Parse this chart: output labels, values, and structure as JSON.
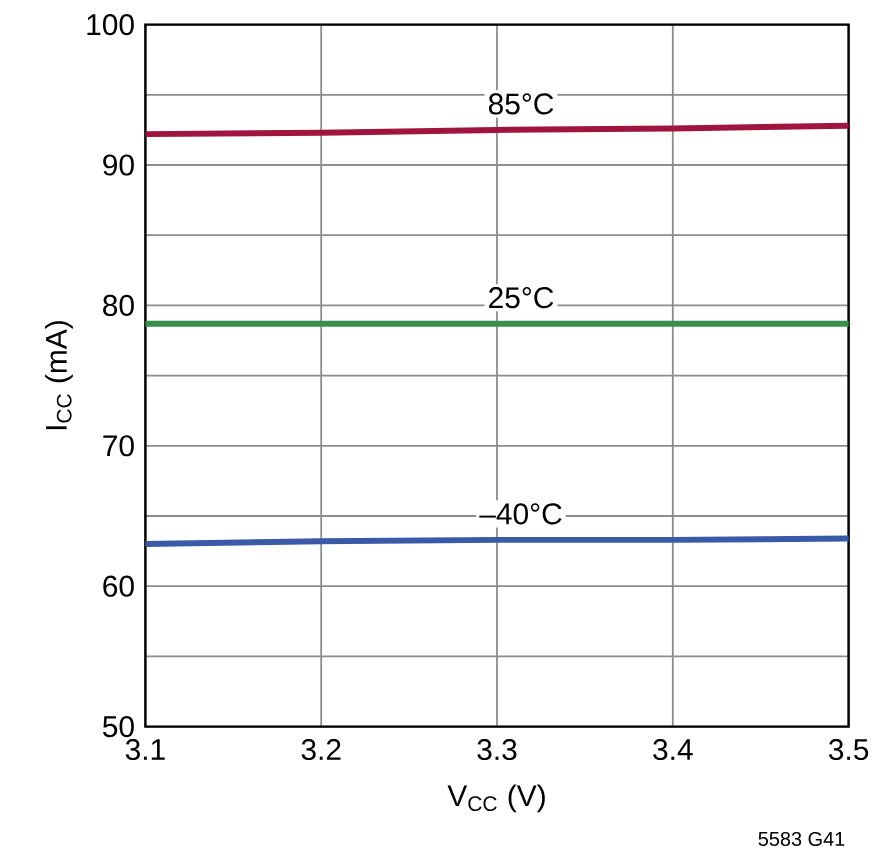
{
  "chart_data": {
    "type": "line",
    "xlabel": "V$_{CC}$ (V)",
    "ylabel": "I$_{CC}$ (mA)",
    "x": [
      3.1,
      3.2,
      3.3,
      3.4,
      3.5
    ],
    "series": [
      {
        "name": "85°C",
        "color": "#a0153e",
        "values": [
          92.2,
          92.3,
          92.5,
          92.6,
          92.8
        ]
      },
      {
        "name": "25°C",
        "color": "#3a8f4a",
        "values": [
          78.7,
          78.7,
          78.7,
          78.7,
          78.7
        ]
      },
      {
        "name": "–40°C",
        "color": "#3a5aa8",
        "values": [
          63.0,
          63.2,
          63.3,
          63.3,
          63.4
        ]
      }
    ],
    "xlim": [
      3.1,
      3.5
    ],
    "ylim": [
      50,
      100
    ],
    "xticks": [
      3.1,
      3.2,
      3.3,
      3.4,
      3.5
    ],
    "yticks": [
      50,
      {
        "value": 55,
        "label": null
      },
      60,
      {
        "value": 65,
        "label": null
      },
      70,
      {
        "value": 75,
        "label": null
      },
      80,
      {
        "value": 85,
        "label": null
      },
      90,
      {
        "value": 95,
        "label": null
      },
      100
    ],
    "grid": true,
    "marker": "none",
    "line_style": "solid",
    "annotations": [
      "5583 G41"
    ]
  }
}
